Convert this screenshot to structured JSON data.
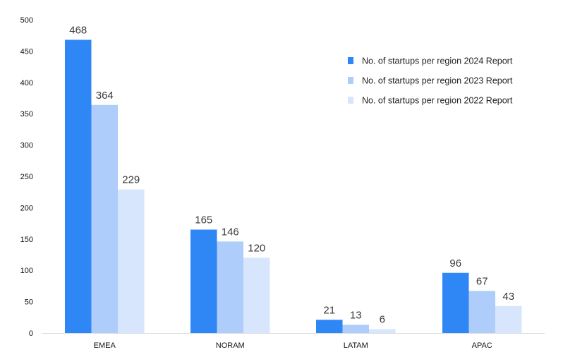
{
  "chart_data": {
    "type": "bar",
    "title": "",
    "xlabel": "",
    "ylabel": "",
    "categories": [
      "EMEA",
      "NORAM",
      "LATAM",
      "APAC"
    ],
    "series": [
      {
        "name": "No. of startups per region 2024 Report",
        "values": [
          468,
          165,
          21,
          96
        ],
        "color": "#2f86f5"
      },
      {
        "name": "No. of startups per region 2023 Report",
        "values": [
          364,
          146,
          13,
          67
        ],
        "color": "#aecdfb"
      },
      {
        "name": "No. of startups per region 2022 Report",
        "values": [
          229,
          120,
          6,
          43
        ],
        "color": "#d7e6fd"
      }
    ],
    "ylim": [
      0,
      500
    ],
    "yticks": [
      0,
      50,
      100,
      150,
      200,
      250,
      300,
      350,
      400,
      450,
      500
    ],
    "grid": false,
    "legend_position": "top-right",
    "data_labels": true
  }
}
